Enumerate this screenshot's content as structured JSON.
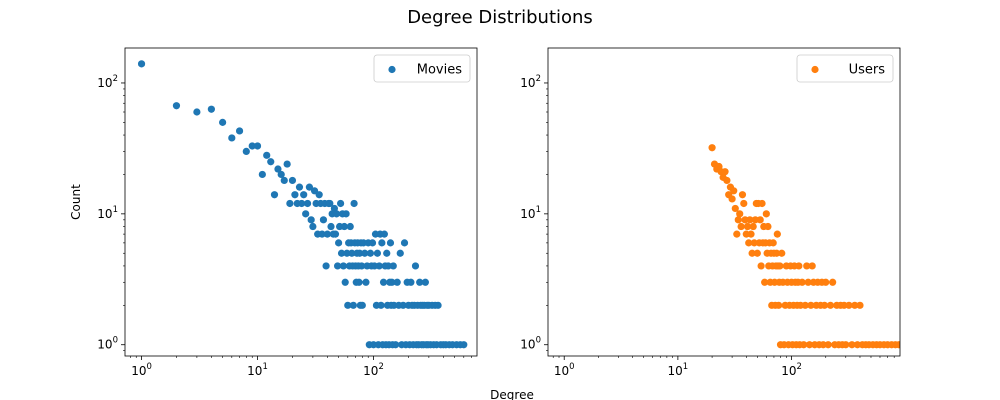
{
  "figure": {
    "title": "Degree Distributions",
    "shared_xlabel": "Degree"
  },
  "chart_data": [
    {
      "type": "scatter",
      "xscale": "log",
      "yscale": "log",
      "xlim": [
        0.72,
        780
      ],
      "ylim": [
        0.82,
        185
      ],
      "xticks": [
        1,
        10,
        100
      ],
      "yticks": [
        1,
        10,
        100
      ],
      "tick_labels": {
        "base": "10",
        "x_exponents": [
          "0",
          "1",
          "2"
        ],
        "y_exponents": [
          "0",
          "1",
          "2"
        ]
      },
      "xlabel": "",
      "ylabel": "Count",
      "legend": {
        "position": "top-right"
      },
      "series": [
        {
          "name": "Movies",
          "color": "#1f77b4",
          "points": [
            [
              1,
              140
            ],
            [
              2,
              67
            ],
            [
              3,
              60
            ],
            [
              4,
              63
            ],
            [
              5,
              50
            ],
            [
              6,
              38
            ],
            [
              7,
              43
            ],
            [
              8,
              30
            ],
            [
              9,
              33
            ],
            [
              10,
              33
            ],
            [
              11,
              20
            ],
            [
              12,
              28
            ],
            [
              13,
              25
            ],
            [
              14,
              14
            ],
            [
              15,
              22
            ],
            [
              16,
              20
            ],
            [
              17,
              18
            ],
            [
              18,
              24
            ],
            [
              19,
              12
            ],
            [
              20,
              18
            ],
            [
              21,
              14
            ],
            [
              22,
              12
            ],
            [
              23,
              16
            ],
            [
              24,
              12
            ],
            [
              25,
              14
            ],
            [
              26,
              10
            ],
            [
              27,
              12
            ],
            [
              28,
              16
            ],
            [
              29,
              9
            ],
            [
              30,
              8
            ],
            [
              31,
              15
            ],
            [
              32,
              12
            ],
            [
              33,
              7
            ],
            [
              34,
              14
            ],
            [
              35,
              12
            ],
            [
              36,
              7
            ],
            [
              37,
              9
            ],
            [
              38,
              12
            ],
            [
              39,
              4
            ],
            [
              40,
              7
            ],
            [
              41,
              12
            ],
            [
              42,
              12
            ],
            [
              43,
              8
            ],
            [
              44,
              10
            ],
            [
              45,
              7
            ],
            [
              46,
              11
            ],
            [
              47,
              7
            ],
            [
              48,
              10
            ],
            [
              49,
              4
            ],
            [
              50,
              6
            ],
            [
              51,
              8
            ],
            [
              52,
              12
            ],
            [
              53,
              5
            ],
            [
              54,
              10
            ],
            [
              55,
              4
            ],
            [
              56,
              8
            ],
            [
              57,
              3
            ],
            [
              58,
              10
            ],
            [
              59,
              5
            ],
            [
              60,
              2
            ],
            [
              61,
              6
            ],
            [
              62,
              4
            ],
            [
              63,
              8
            ],
            [
              64,
              6
            ],
            [
              65,
              5
            ],
            [
              66,
              4
            ],
            [
              67,
              2
            ],
            [
              68,
              12
            ],
            [
              69,
              6
            ],
            [
              70,
              4
            ],
            [
              71,
              3
            ],
            [
              72,
              5
            ],
            [
              73,
              6
            ],
            [
              74,
              4
            ],
            [
              75,
              3
            ],
            [
              76,
              5
            ],
            [
              77,
              2
            ],
            [
              78,
              6
            ],
            [
              79,
              4
            ],
            [
              80,
              2
            ],
            [
              82,
              6
            ],
            [
              84,
              5
            ],
            [
              86,
              3
            ],
            [
              88,
              4
            ],
            [
              90,
              6
            ],
            [
              92,
              1
            ],
            [
              94,
              5
            ],
            [
              96,
              4
            ],
            [
              98,
              6
            ],
            [
              100,
              1
            ],
            [
              102,
              4
            ],
            [
              104,
              7
            ],
            [
              106,
              2
            ],
            [
              108,
              5
            ],
            [
              110,
              1
            ],
            [
              112,
              4
            ],
            [
              114,
              7
            ],
            [
              116,
              2
            ],
            [
              118,
              6
            ],
            [
              120,
              1
            ],
            [
              122,
              3
            ],
            [
              124,
              7
            ],
            [
              126,
              4
            ],
            [
              128,
              1
            ],
            [
              130,
              5
            ],
            [
              132,
              2
            ],
            [
              134,
              4
            ],
            [
              136,
              1
            ],
            [
              138,
              3
            ],
            [
              140,
              6
            ],
            [
              142,
              2
            ],
            [
              144,
              3
            ],
            [
              146,
              1
            ],
            [
              148,
              4
            ],
            [
              150,
              2
            ],
            [
              155,
              1
            ],
            [
              160,
              3
            ],
            [
              165,
              2
            ],
            [
              170,
              5
            ],
            [
              175,
              1
            ],
            [
              180,
              2
            ],
            [
              185,
              6
            ],
            [
              190,
              1
            ],
            [
              195,
              3
            ],
            [
              200,
              2
            ],
            [
              205,
              1
            ],
            [
              210,
              3
            ],
            [
              215,
              2
            ],
            [
              220,
              1
            ],
            [
              225,
              2
            ],
            [
              230,
              4
            ],
            [
              235,
              1
            ],
            [
              240,
              2
            ],
            [
              245,
              1
            ],
            [
              250,
              3
            ],
            [
              255,
              2
            ],
            [
              260,
              1
            ],
            [
              265,
              2
            ],
            [
              270,
              1
            ],
            [
              275,
              2
            ],
            [
              280,
              3
            ],
            [
              285,
              1
            ],
            [
              290,
              2
            ],
            [
              295,
              1
            ],
            [
              300,
              2
            ],
            [
              310,
              1
            ],
            [
              320,
              2
            ],
            [
              330,
              1
            ],
            [
              340,
              2
            ],
            [
              350,
              1
            ],
            [
              360,
              2
            ],
            [
              380,
              1
            ],
            [
              400,
              1
            ],
            [
              420,
              1
            ],
            [
              450,
              1
            ],
            [
              480,
              1
            ],
            [
              520,
              1
            ],
            [
              560,
              1
            ],
            [
              600,
              1
            ]
          ]
        }
      ]
    },
    {
      "type": "scatter",
      "xscale": "log",
      "yscale": "log",
      "xlim": [
        0.72,
        900
      ],
      "ylim": [
        0.82,
        185
      ],
      "xticks": [
        1,
        10,
        100
      ],
      "yticks": [
        1,
        10,
        100
      ],
      "tick_labels": {
        "base": "10",
        "x_exponents": [
          "0",
          "1",
          "2"
        ],
        "y_exponents": [
          "0",
          "1",
          "2"
        ]
      },
      "xlabel": "",
      "ylabel": "",
      "legend": {
        "position": "top-right"
      },
      "series": [
        {
          "name": "Users",
          "color": "#ff7f0e",
          "points": [
            [
              20,
              32
            ],
            [
              21,
              24
            ],
            [
              22,
              22
            ],
            [
              23,
              23
            ],
            [
              24,
              21
            ],
            [
              25,
              19
            ],
            [
              26,
              21
            ],
            [
              27,
              18
            ],
            [
              28,
              14
            ],
            [
              29,
              16
            ],
            [
              30,
              13
            ],
            [
              31,
              15
            ],
            [
              32,
              11
            ],
            [
              33,
              7
            ],
            [
              34,
              9
            ],
            [
              35,
              10
            ],
            [
              36,
              8
            ],
            [
              37,
              14
            ],
            [
              38,
              12
            ],
            [
              39,
              9
            ],
            [
              40,
              7
            ],
            [
              41,
              8
            ],
            [
              42,
              6
            ],
            [
              43,
              9
            ],
            [
              44,
              7
            ],
            [
              45,
              5
            ],
            [
              46,
              8
            ],
            [
              47,
              6
            ],
            [
              48,
              9
            ],
            [
              49,
              12
            ],
            [
              50,
              5
            ],
            [
              51,
              12
            ],
            [
              52,
              6
            ],
            [
              53,
              9
            ],
            [
              54,
              4
            ],
            [
              55,
              12
            ],
            [
              56,
              6
            ],
            [
              57,
              8
            ],
            [
              58,
              3
            ],
            [
              59,
              6
            ],
            [
              60,
              10
            ],
            [
              61,
              5
            ],
            [
              62,
              8
            ],
            [
              63,
              4
            ],
            [
              64,
              6
            ],
            [
              65,
              3
            ],
            [
              66,
              5
            ],
            [
              67,
              2
            ],
            [
              68,
              4
            ],
            [
              69,
              6
            ],
            [
              70,
              5
            ],
            [
              71,
              3
            ],
            [
              72,
              2
            ],
            [
              73,
              4
            ],
            [
              74,
              5
            ],
            [
              75,
              7
            ],
            [
              76,
              4
            ],
            [
              77,
              2
            ],
            [
              78,
              3
            ],
            [
              79,
              4
            ],
            [
              80,
              1
            ],
            [
              82,
              5
            ],
            [
              84,
              3
            ],
            [
              86,
              1
            ],
            [
              88,
              2
            ],
            [
              90,
              4
            ],
            [
              92,
              3
            ],
            [
              94,
              1
            ],
            [
              96,
              2
            ],
            [
              98,
              4
            ],
            [
              100,
              3
            ],
            [
              102,
              1
            ],
            [
              104,
              2
            ],
            [
              106,
              4
            ],
            [
              108,
              3
            ],
            [
              110,
              1
            ],
            [
              112,
              2
            ],
            [
              114,
              3
            ],
            [
              116,
              4
            ],
            [
              118,
              1
            ],
            [
              120,
              2
            ],
            [
              124,
              3
            ],
            [
              128,
              1
            ],
            [
              132,
              2
            ],
            [
              136,
              4
            ],
            [
              140,
              3
            ],
            [
              144,
              1
            ],
            [
              148,
              2
            ],
            [
              152,
              4
            ],
            [
              156,
              3
            ],
            [
              160,
              1
            ],
            [
              165,
              2
            ],
            [
              170,
              3
            ],
            [
              175,
              1
            ],
            [
              180,
              2
            ],
            [
              185,
              3
            ],
            [
              190,
              1
            ],
            [
              195,
              2
            ],
            [
              200,
              3
            ],
            [
              210,
              1
            ],
            [
              220,
              2
            ],
            [
              230,
              3
            ],
            [
              240,
              1
            ],
            [
              250,
              2
            ],
            [
              260,
              1
            ],
            [
              270,
              2
            ],
            [
              280,
              1
            ],
            [
              290,
              2
            ],
            [
              300,
              1
            ],
            [
              320,
              2
            ],
            [
              340,
              1
            ],
            [
              360,
              2
            ],
            [
              380,
              1
            ],
            [
              400,
              2
            ],
            [
              420,
              1
            ],
            [
              450,
              1
            ],
            [
              480,
              1
            ],
            [
              520,
              1
            ],
            [
              560,
              1
            ],
            [
              600,
              1
            ],
            [
              650,
              1
            ],
            [
              700,
              1
            ],
            [
              760,
              1
            ],
            [
              820,
              1
            ],
            [
              880,
              1
            ]
          ]
        }
      ]
    }
  ]
}
